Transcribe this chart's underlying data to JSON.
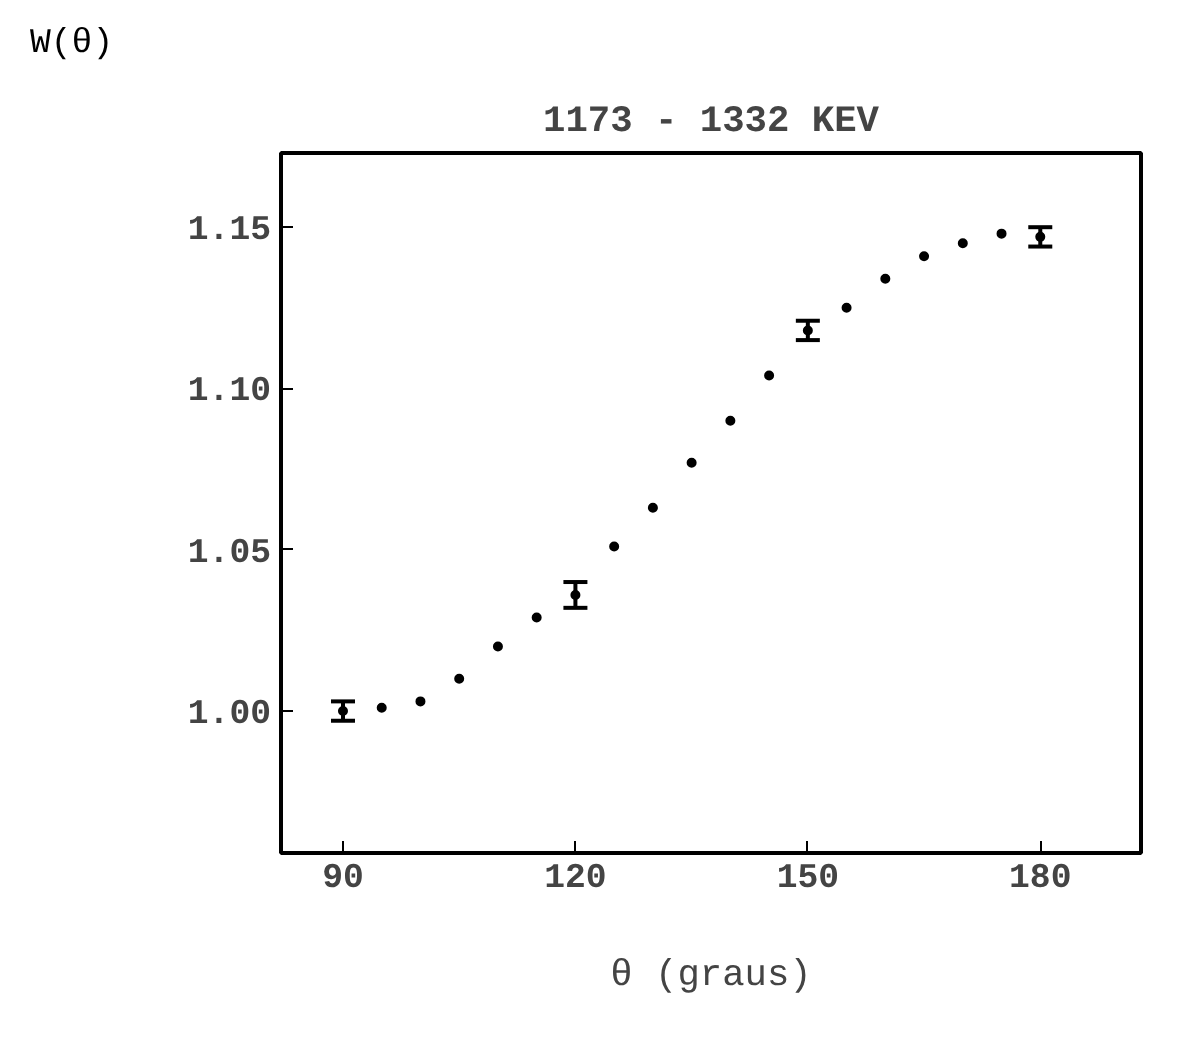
{
  "chart_data": {
    "type": "scatter",
    "title": "1173 - 1332 KEV",
    "xlabel": "θ (graus)",
    "ylabel": "W(θ)",
    "xlim": [
      82,
      193
    ],
    "ylim": [
      0.956,
      1.173
    ],
    "xticks": [
      90,
      120,
      150,
      180
    ],
    "yticks": [
      {
        "value": 1.0,
        "label": "1.00"
      },
      {
        "value": 1.05,
        "label": "1.05"
      },
      {
        "value": 1.1,
        "label": "1.10"
      },
      {
        "value": 1.15,
        "label": "1.15"
      }
    ],
    "grid": false,
    "marker": "circle",
    "series": [
      {
        "color": "#000000",
        "x": [
          90,
          120,
          150,
          180
        ],
        "values": [
          1.0,
          1.036,
          1.118,
          1.147
        ],
        "errors": [
          0.003,
          0.004,
          0.003,
          0.003
        ]
      },
      {
        "color": "#000000",
        "x": [
          95,
          100,
          105,
          110,
          115,
          125,
          130,
          135,
          140,
          145,
          155,
          160,
          165,
          170,
          175
        ],
        "values": [
          1.001,
          1.003,
          1.01,
          1.02,
          1.029,
          1.051,
          1.063,
          1.077,
          1.09,
          1.104,
          1.125,
          1.134,
          1.141,
          1.145,
          1.148
        ]
      }
    ]
  }
}
